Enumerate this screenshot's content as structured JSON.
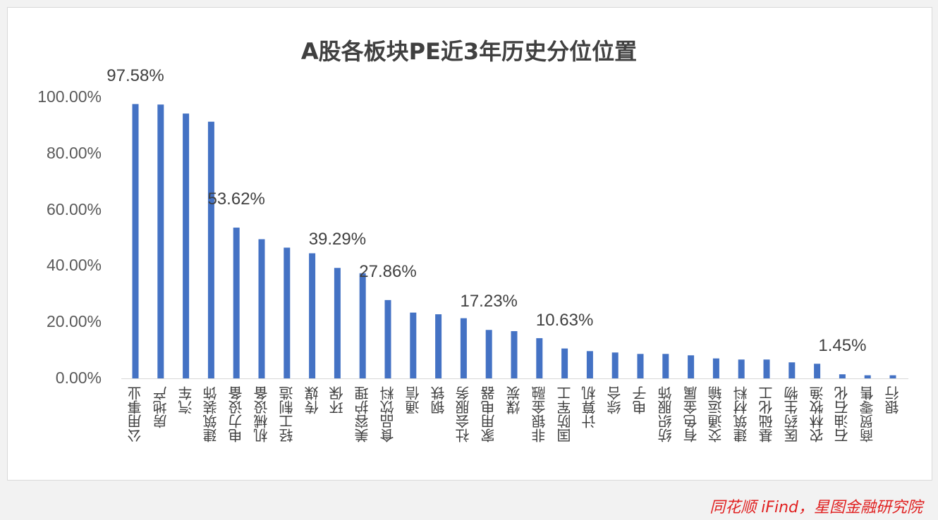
{
  "chart_data": {
    "type": "bar",
    "title": "A股各板块PE近3年历史分位位置",
    "xlabel": "",
    "ylabel": "",
    "ylim": [
      0,
      100
    ],
    "yticks": [
      "0.00%",
      "20.00%",
      "40.00%",
      "60.00%",
      "80.00%",
      "100.00%"
    ],
    "grid": false,
    "bar_color": "#4472c4",
    "categories": [
      "公用事业",
      "房地产",
      "汽车",
      "建筑装饰",
      "电力设备",
      "机械设备",
      "轻工制造",
      "传媒",
      "环保",
      "美容护理",
      "食品饮料",
      "通信",
      "钢铁",
      "社会服务",
      "家用电器",
      "煤炭",
      "非银金融",
      "国防军工",
      "计算机",
      "综合",
      "电子",
      "纺织服饰",
      "有色金属",
      "交通运输",
      "建筑材料",
      "基础化工",
      "医药生物",
      "农林牧渔",
      "石油石化",
      "商贸零售",
      "银行"
    ],
    "values": [
      97.58,
      97.4,
      94.2,
      91.3,
      53.62,
      49.5,
      46.5,
      44.5,
      39.29,
      37.4,
      27.86,
      23.4,
      22.8,
      21.4,
      17.23,
      16.8,
      14.3,
      10.63,
      9.7,
      9.2,
      8.7,
      8.7,
      8.2,
      7.1,
      6.7,
      6.7,
      5.7,
      5.2,
      1.45,
      1.1,
      1.1
    ],
    "data_labels": [
      {
        "category": "公用事业",
        "text": "97.58%"
      },
      {
        "category": "电力设备",
        "text": "53.62%"
      },
      {
        "category": "环保",
        "text": "39.29%"
      },
      {
        "category": "食品饮料",
        "text": "27.86%"
      },
      {
        "category": "家用电器",
        "text": "17.23%"
      },
      {
        "category": "国防军工",
        "text": "10.63%"
      },
      {
        "category": "石油石化",
        "text": "1.45%"
      }
    ]
  },
  "watermark": "同花顺 iFind，星图金融研究院"
}
